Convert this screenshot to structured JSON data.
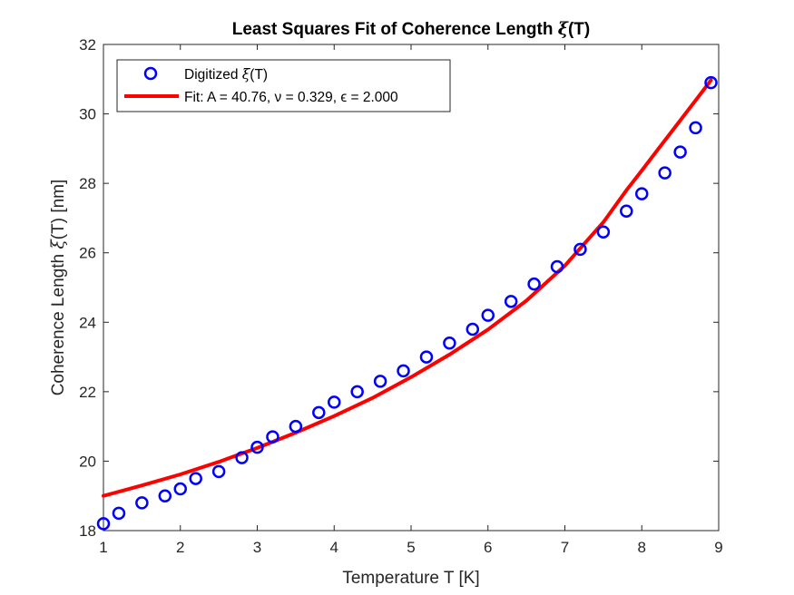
{
  "chart_data": {
    "type": "scatter",
    "title_prefix": "Least Squares Fit of Coherence Length ",
    "title_symbol": "ξ",
    "title_suffix": "(T)",
    "xlabel": "Temperature T [K]",
    "ylabel_prefix": "Coherence Length ",
    "ylabel_symbol": "ξ",
    "ylabel_suffix": "(T) [nm]",
    "xlim": [
      1,
      9
    ],
    "ylim": [
      18,
      32
    ],
    "xticks": [
      1,
      2,
      3,
      4,
      5,
      6,
      7,
      8,
      9
    ],
    "yticks": [
      18,
      20,
      22,
      24,
      26,
      28,
      30,
      32
    ],
    "grid": false,
    "legend_position": "top-left",
    "series": [
      {
        "name_prefix": "Digitized ",
        "name_symbol": "ξ",
        "name_suffix": "(T)",
        "kind": "markers",
        "marker": "circle",
        "color": "#0000ff",
        "x": [
          1.0,
          1.2,
          1.5,
          1.8,
          2.0,
          2.2,
          2.5,
          2.8,
          3.0,
          3.2,
          3.5,
          3.8,
          4.0,
          4.3,
          4.6,
          4.9,
          5.2,
          5.5,
          5.8,
          6.0,
          6.3,
          6.6,
          6.9,
          7.2,
          7.5,
          7.8,
          8.0,
          8.3,
          8.5,
          8.7,
          8.9
        ],
        "y": [
          18.2,
          18.5,
          18.8,
          19.0,
          19.2,
          19.5,
          19.7,
          20.1,
          20.4,
          20.7,
          21.0,
          21.4,
          21.7,
          22.0,
          22.3,
          22.6,
          23.0,
          23.4,
          23.8,
          24.2,
          24.6,
          25.1,
          25.6,
          26.1,
          26.6,
          27.2,
          27.7,
          28.3,
          28.9,
          29.6,
          30.9
        ]
      },
      {
        "name": "Fit: A = 40.76, ν = 0.329, ϵ = 2.000",
        "kind": "line",
        "color": "#ff0000",
        "x": [
          1.0,
          1.5,
          2.0,
          2.5,
          3.0,
          3.5,
          4.0,
          4.5,
          5.0,
          5.5,
          6.0,
          6.5,
          7.0,
          7.5,
          7.8,
          8.0,
          8.2,
          8.4,
          8.6,
          8.8,
          8.9
        ],
        "y": [
          19.0,
          19.3,
          19.62,
          19.98,
          20.38,
          20.82,
          21.3,
          21.82,
          22.42,
          23.07,
          23.79,
          24.62,
          25.63,
          26.88,
          27.8,
          28.37,
          28.95,
          29.52,
          30.1,
          30.68,
          30.97
        ]
      }
    ]
  }
}
